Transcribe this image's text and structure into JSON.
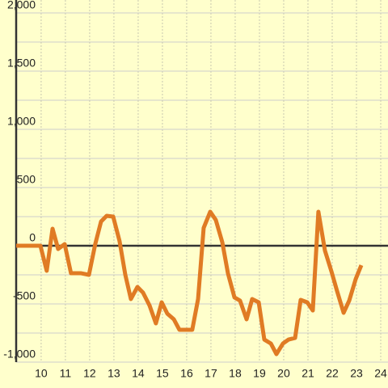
{
  "chart_data": {
    "type": "line",
    "x": [
      8.97,
      9.97,
      10.23,
      10.47,
      10.7,
      10.97,
      11.23,
      11.63,
      11.97,
      12.23,
      12.47,
      12.7,
      12.97,
      13.23,
      13.47,
      13.7,
      13.97,
      14.2,
      14.47,
      14.73,
      14.97,
      15.2,
      15.47,
      15.7,
      15.97,
      16.23,
      16.47,
      16.7,
      16.97,
      17.2,
      17.47,
      17.7,
      17.97,
      18.2,
      18.47,
      18.7,
      18.97,
      19.2,
      19.47,
      19.7,
      19.97,
      20.2,
      20.47,
      20.7,
      20.97,
      21.2,
      21.43,
      21.7,
      21.97,
      22.2,
      22.47,
      22.7,
      22.97,
      23.2
    ],
    "series": [
      {
        "color": "#e07b24",
        "values": [
          0,
          0,
          -215,
          146,
          -28,
          14,
          -236,
          -236,
          -250,
          14,
          208,
          257,
          250,
          42,
          -250,
          -458,
          -354,
          -403,
          -514,
          -667,
          -486,
          -583,
          -632,
          -722,
          -722,
          -722,
          -458,
          153,
          292,
          222,
          28,
          -236,
          -444,
          -472,
          -632,
          -458,
          -486,
          -806,
          -840,
          -931,
          -840,
          -806,
          -792,
          -465,
          -486,
          -556,
          292,
          -42,
          -222,
          -389,
          -576,
          -472,
          -285,
          -167
        ]
      }
    ],
    "xlim": [
      8.97,
      24.3
    ],
    "xticks": [
      10,
      11,
      12,
      13,
      14,
      15,
      16,
      17,
      18,
      19,
      20,
      21,
      22,
      23,
      24
    ],
    "ylim": [
      -1000,
      2000
    ],
    "yticks": [
      {
        "value": -1000,
        "label": "-1,000"
      },
      -500,
      0,
      500,
      {
        "value": 1000,
        "label": "1,000"
      },
      {
        "value": 1500,
        "label": "1,500"
      },
      {
        "value": 2000,
        "label": "2,000"
      }
    ],
    "y_minor_ticks": [
      -750,
      -250,
      250,
      750,
      1250,
      1750
    ],
    "grid": true
  }
}
